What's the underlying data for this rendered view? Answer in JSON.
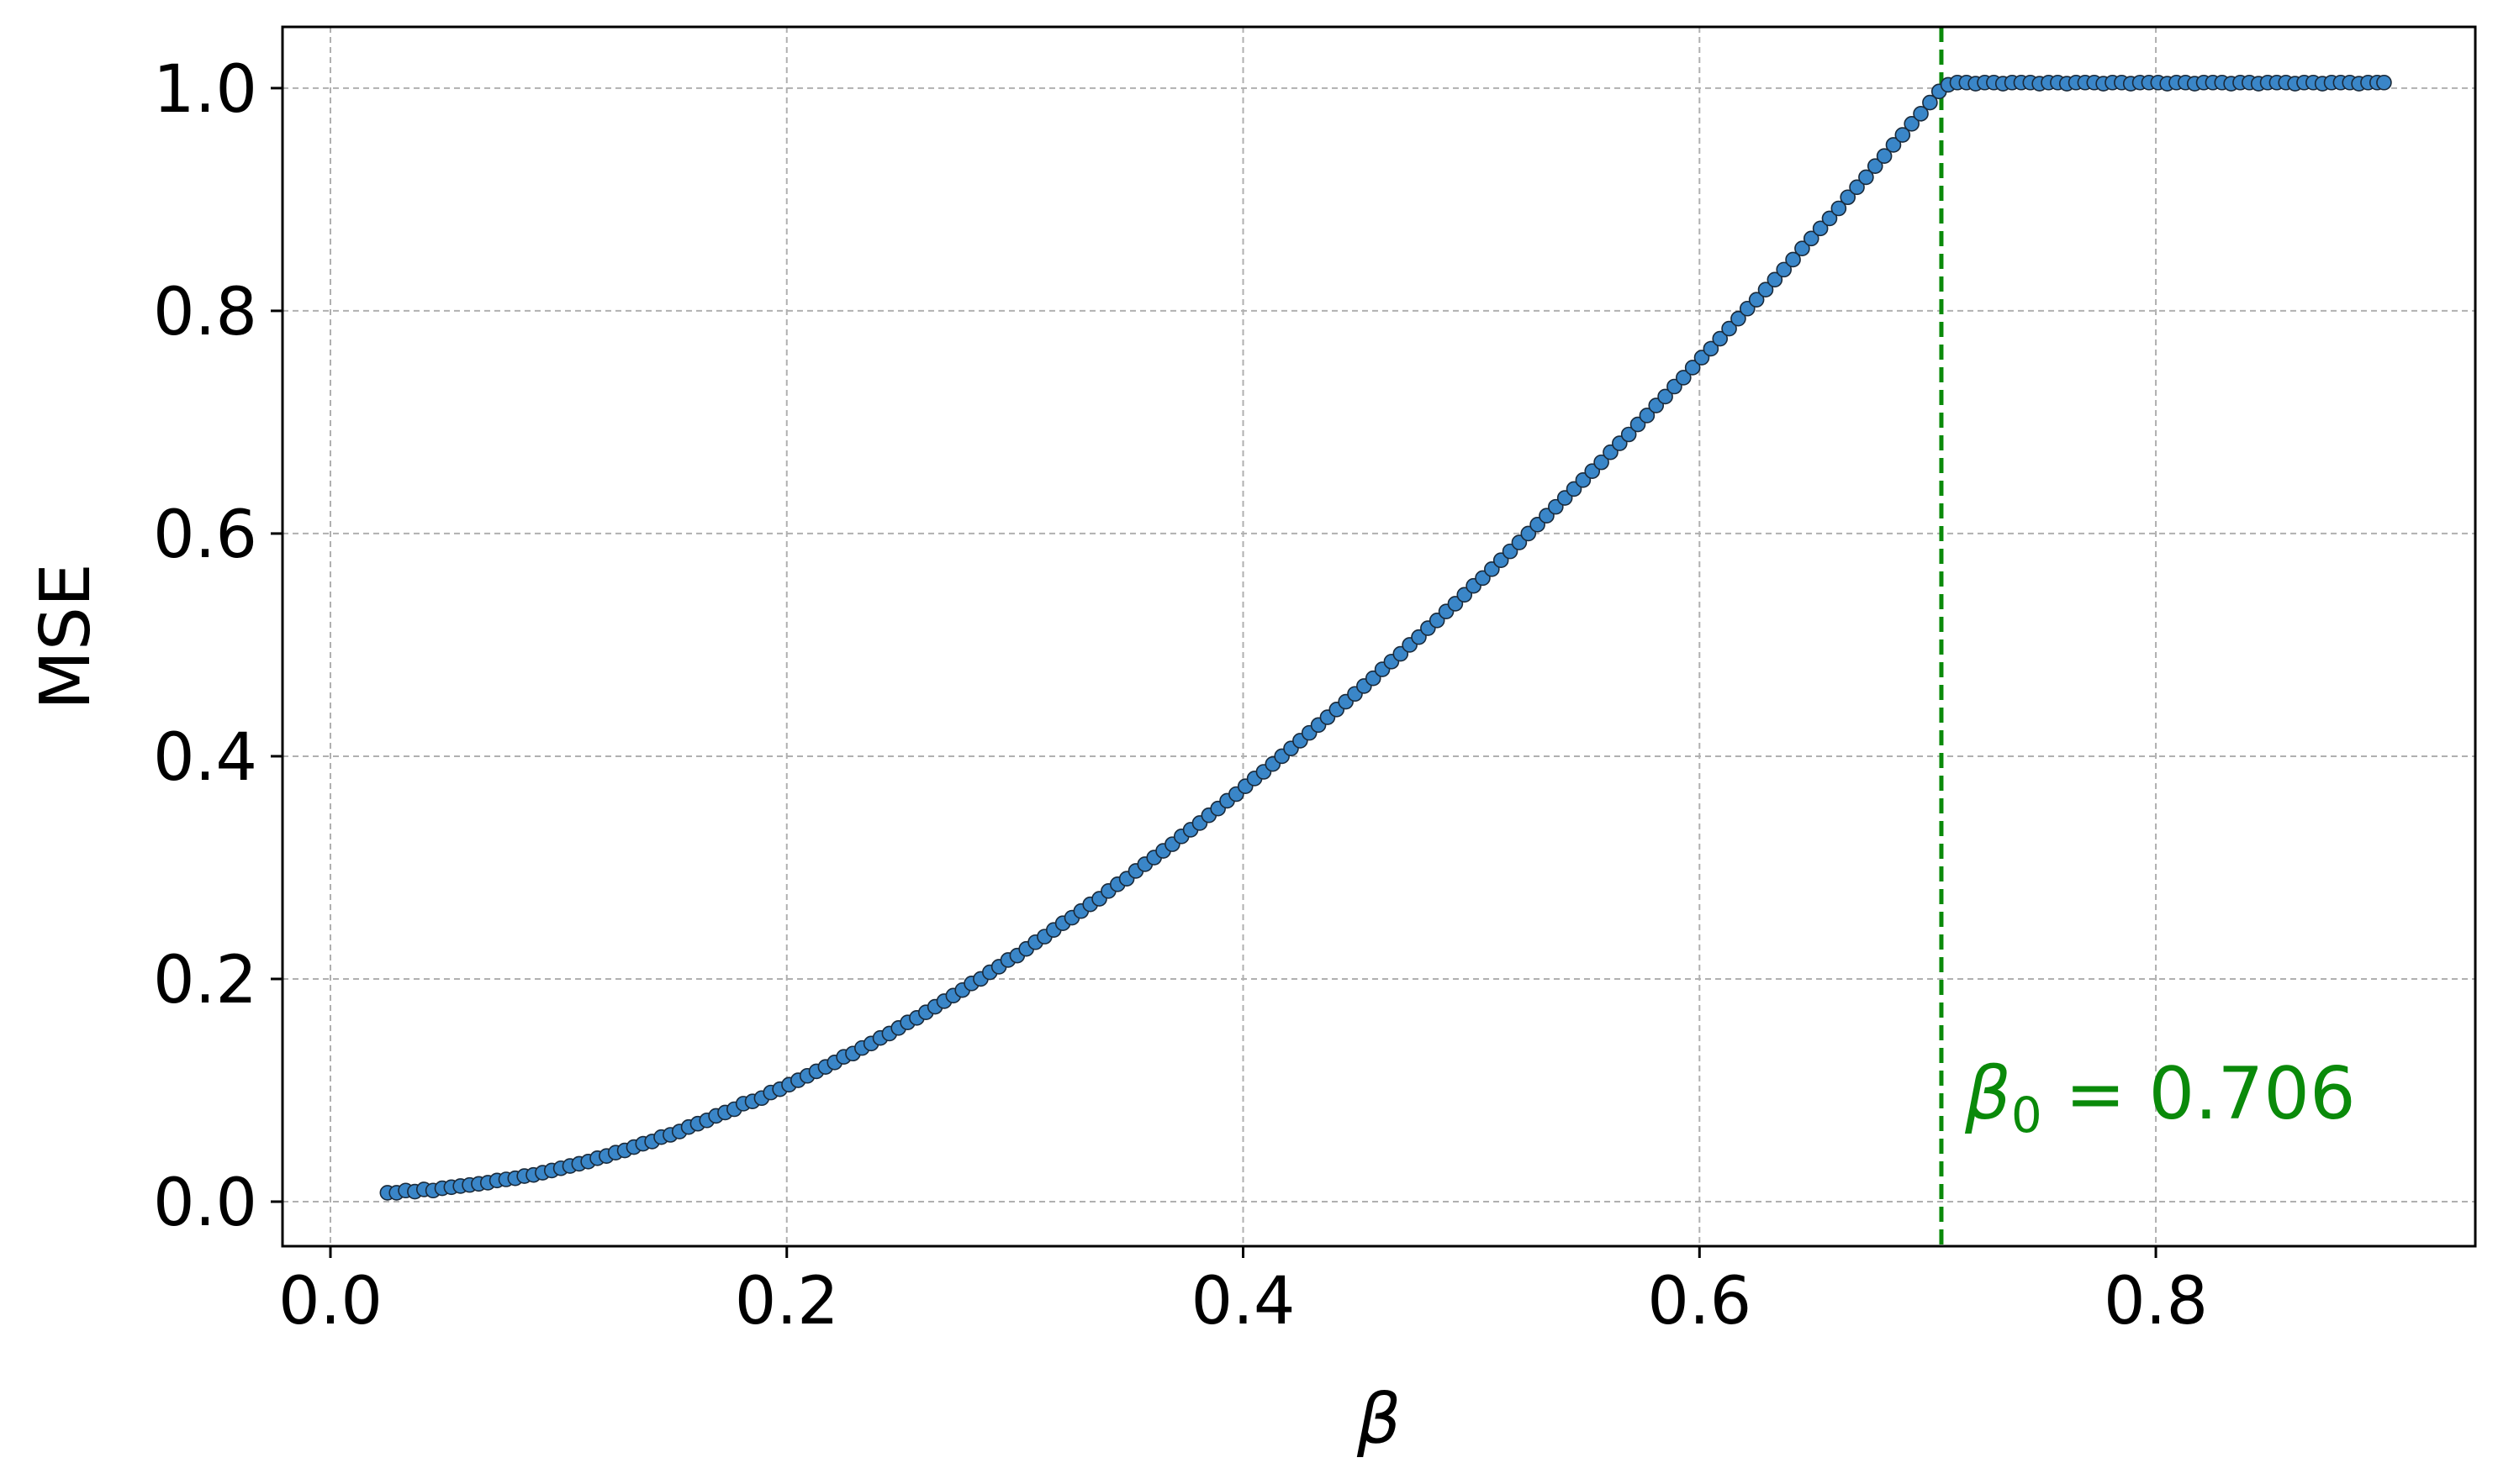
{
  "chart_data": {
    "type": "scatter",
    "xlabel": "β",
    "ylabel": "MSE",
    "xlim": [
      -0.021,
      0.94
    ],
    "ylim": [
      -0.04,
      1.055
    ],
    "x_ticks": [
      "0.0",
      "0.2",
      "0.4",
      "0.6",
      "0.8"
    ],
    "y_ticks": [
      "0.0",
      "0.2",
      "0.4",
      "0.6",
      "0.8",
      "1.0"
    ],
    "grid": true,
    "point_color": "#3a86c8",
    "point_edge_color": "#1a2a3a",
    "threshold": {
      "x": 0.706,
      "color": "#0a8a0a",
      "label_base": "β",
      "label_sub": "0",
      "label_rest": " = 0.706"
    },
    "series": [
      {
        "points": [
          [
            0.025,
            0.008
          ],
          [
            0.029,
            0.008
          ],
          [
            0.033,
            0.01
          ],
          [
            0.037,
            0.009
          ],
          [
            0.041,
            0.011
          ],
          [
            0.045,
            0.01
          ],
          [
            0.049,
            0.012
          ],
          [
            0.053,
            0.013
          ],
          [
            0.057,
            0.014
          ],
          [
            0.061,
            0.015
          ],
          [
            0.065,
            0.016
          ],
          [
            0.069,
            0.017
          ],
          [
            0.073,
            0.019
          ],
          [
            0.077,
            0.02
          ],
          [
            0.081,
            0.021
          ],
          [
            0.085,
            0.023
          ],
          [
            0.089,
            0.024
          ],
          [
            0.093,
            0.026
          ],
          [
            0.097,
            0.028
          ],
          [
            0.101,
            0.03
          ],
          [
            0.105,
            0.032
          ],
          [
            0.109,
            0.034
          ],
          [
            0.113,
            0.036
          ],
          [
            0.117,
            0.039
          ],
          [
            0.121,
            0.041
          ],
          [
            0.125,
            0.044
          ],
          [
            0.129,
            0.046
          ],
          [
            0.133,
            0.049
          ],
          [
            0.137,
            0.052
          ],
          [
            0.141,
            0.054
          ],
          [
            0.145,
            0.058
          ],
          [
            0.149,
            0.06
          ],
          [
            0.153,
            0.063
          ],
          [
            0.157,
            0.067
          ],
          [
            0.161,
            0.07
          ],
          [
            0.165,
            0.073
          ],
          [
            0.169,
            0.077
          ],
          [
            0.173,
            0.08
          ],
          [
            0.177,
            0.083
          ],
          [
            0.181,
            0.088
          ],
          [
            0.185,
            0.09
          ],
          [
            0.189,
            0.093
          ],
          [
            0.193,
            0.098
          ],
          [
            0.197,
            0.101
          ],
          [
            0.201,
            0.105
          ],
          [
            0.205,
            0.109
          ],
          [
            0.209,
            0.113
          ],
          [
            0.213,
            0.117
          ],
          [
            0.217,
            0.121
          ],
          [
            0.221,
            0.125
          ],
          [
            0.225,
            0.13
          ],
          [
            0.229,
            0.133
          ],
          [
            0.233,
            0.138
          ],
          [
            0.237,
            0.142
          ],
          [
            0.241,
            0.147
          ],
          [
            0.245,
            0.151
          ],
          [
            0.249,
            0.156
          ],
          [
            0.253,
            0.161
          ],
          [
            0.257,
            0.165
          ],
          [
            0.261,
            0.17
          ],
          [
            0.265,
            0.175
          ],
          [
            0.269,
            0.18
          ],
          [
            0.273,
            0.185
          ],
          [
            0.277,
            0.19
          ],
          [
            0.281,
            0.196
          ],
          [
            0.285,
            0.2
          ],
          [
            0.289,
            0.206
          ],
          [
            0.293,
            0.211
          ],
          [
            0.297,
            0.217
          ],
          [
            0.301,
            0.221
          ],
          [
            0.305,
            0.227
          ],
          [
            0.309,
            0.233
          ],
          [
            0.313,
            0.238
          ],
          [
            0.317,
            0.244
          ],
          [
            0.321,
            0.25
          ],
          [
            0.325,
            0.255
          ],
          [
            0.329,
            0.261
          ],
          [
            0.333,
            0.267
          ],
          [
            0.337,
            0.272
          ],
          [
            0.341,
            0.279
          ],
          [
            0.345,
            0.285
          ],
          [
            0.349,
            0.29
          ],
          [
            0.353,
            0.297
          ],
          [
            0.357,
            0.303
          ],
          [
            0.361,
            0.309
          ],
          [
            0.365,
            0.315
          ],
          [
            0.369,
            0.321
          ],
          [
            0.373,
            0.328
          ],
          [
            0.377,
            0.334
          ],
          [
            0.381,
            0.34
          ],
          [
            0.385,
            0.347
          ],
          [
            0.389,
            0.353
          ],
          [
            0.393,
            0.36
          ],
          [
            0.397,
            0.366
          ],
          [
            0.401,
            0.373
          ],
          [
            0.405,
            0.38
          ],
          [
            0.409,
            0.386
          ],
          [
            0.413,
            0.393
          ],
          [
            0.417,
            0.4
          ],
          [
            0.421,
            0.407
          ],
          [
            0.425,
            0.414
          ],
          [
            0.429,
            0.421
          ],
          [
            0.433,
            0.428
          ],
          [
            0.437,
            0.435
          ],
          [
            0.441,
            0.442
          ],
          [
            0.445,
            0.449
          ],
          [
            0.449,
            0.456
          ],
          [
            0.453,
            0.463
          ],
          [
            0.457,
            0.47
          ],
          [
            0.461,
            0.478
          ],
          [
            0.465,
            0.485
          ],
          [
            0.469,
            0.492
          ],
          [
            0.473,
            0.5
          ],
          [
            0.477,
            0.507
          ],
          [
            0.481,
            0.515
          ],
          [
            0.485,
            0.522
          ],
          [
            0.489,
            0.53
          ],
          [
            0.493,
            0.537
          ],
          [
            0.497,
            0.545
          ],
          [
            0.501,
            0.553
          ],
          [
            0.505,
            0.56
          ],
          [
            0.509,
            0.568
          ],
          [
            0.513,
            0.576
          ],
          [
            0.517,
            0.584
          ],
          [
            0.521,
            0.592
          ],
          [
            0.525,
            0.6
          ],
          [
            0.529,
            0.608
          ],
          [
            0.533,
            0.616
          ],
          [
            0.537,
            0.624
          ],
          [
            0.541,
            0.632
          ],
          [
            0.545,
            0.64
          ],
          [
            0.549,
            0.648
          ],
          [
            0.553,
            0.656
          ],
          [
            0.557,
            0.664
          ],
          [
            0.561,
            0.673
          ],
          [
            0.565,
            0.681
          ],
          [
            0.569,
            0.689
          ],
          [
            0.573,
            0.698
          ],
          [
            0.577,
            0.706
          ],
          [
            0.581,
            0.715
          ],
          [
            0.585,
            0.723
          ],
          [
            0.589,
            0.732
          ],
          [
            0.593,
            0.74
          ],
          [
            0.597,
            0.749
          ],
          [
            0.601,
            0.758
          ],
          [
            0.605,
            0.766
          ],
          [
            0.609,
            0.775
          ],
          [
            0.613,
            0.784
          ],
          [
            0.617,
            0.793
          ],
          [
            0.621,
            0.802
          ],
          [
            0.625,
            0.81
          ],
          [
            0.629,
            0.819
          ],
          [
            0.633,
            0.828
          ],
          [
            0.637,
            0.837
          ],
          [
            0.641,
            0.846
          ],
          [
            0.645,
            0.856
          ],
          [
            0.649,
            0.865
          ],
          [
            0.653,
            0.874
          ],
          [
            0.657,
            0.883
          ],
          [
            0.661,
            0.892
          ],
          [
            0.665,
            0.902
          ],
          [
            0.669,
            0.911
          ],
          [
            0.673,
            0.92
          ],
          [
            0.677,
            0.93
          ],
          [
            0.681,
            0.939
          ],
          [
            0.685,
            0.949
          ],
          [
            0.689,
            0.958
          ],
          [
            0.693,
            0.968
          ],
          [
            0.697,
            0.977
          ],
          [
            0.701,
            0.987
          ],
          [
            0.705,
            0.997
          ],
          [
            0.709,
            1.003
          ],
          [
            0.713,
            1.005
          ],
          [
            0.717,
            1.005
          ],
          [
            0.721,
            1.004
          ],
          [
            0.725,
            1.005
          ],
          [
            0.729,
            1.005
          ],
          [
            0.733,
            1.004
          ],
          [
            0.737,
            1.005
          ],
          [
            0.741,
            1.005
          ],
          [
            0.745,
            1.005
          ],
          [
            0.749,
            1.004
          ],
          [
            0.753,
            1.005
          ],
          [
            0.757,
            1.005
          ],
          [
            0.761,
            1.004
          ],
          [
            0.765,
            1.005
          ],
          [
            0.769,
            1.005
          ],
          [
            0.773,
            1.005
          ],
          [
            0.777,
            1.004
          ],
          [
            0.781,
            1.005
          ],
          [
            0.785,
            1.005
          ],
          [
            0.789,
            1.004
          ],
          [
            0.793,
            1.005
          ],
          [
            0.797,
            1.005
          ],
          [
            0.801,
            1.005
          ],
          [
            0.805,
            1.004
          ],
          [
            0.809,
            1.005
          ],
          [
            0.813,
            1.005
          ],
          [
            0.817,
            1.004
          ],
          [
            0.821,
            1.005
          ],
          [
            0.825,
            1.005
          ],
          [
            0.829,
            1.005
          ],
          [
            0.833,
            1.004
          ],
          [
            0.837,
            1.005
          ],
          [
            0.841,
            1.005
          ],
          [
            0.845,
            1.004
          ],
          [
            0.849,
            1.005
          ],
          [
            0.853,
            1.005
          ],
          [
            0.857,
            1.005
          ],
          [
            0.861,
            1.004
          ],
          [
            0.865,
            1.005
          ],
          [
            0.869,
            1.005
          ],
          [
            0.873,
            1.004
          ],
          [
            0.877,
            1.005
          ],
          [
            0.881,
            1.005
          ],
          [
            0.885,
            1.005
          ],
          [
            0.889,
            1.004
          ],
          [
            0.893,
            1.005
          ],
          [
            0.897,
            1.005
          ],
          [
            0.9,
            1.005
          ]
        ]
      }
    ]
  }
}
